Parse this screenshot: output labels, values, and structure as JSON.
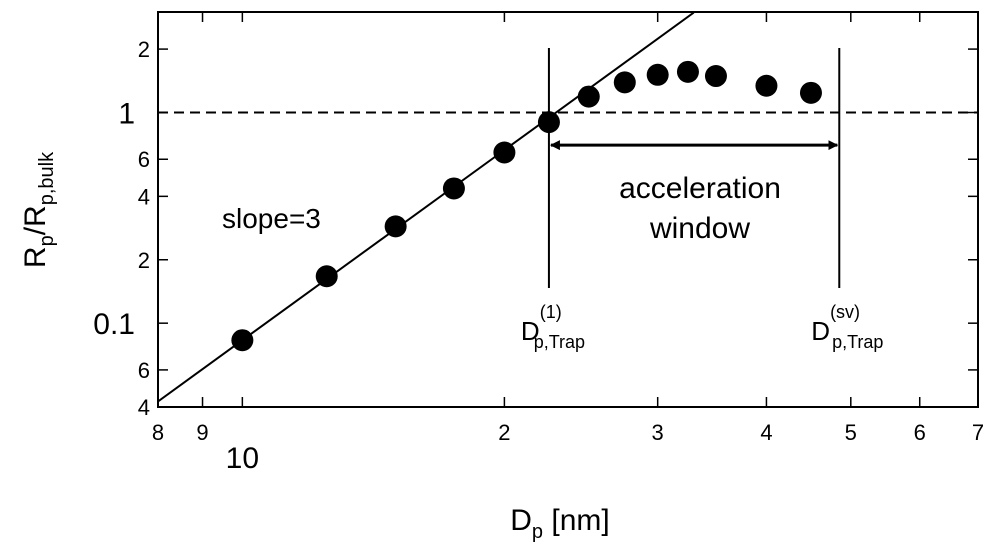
{
  "chart_data": {
    "type": "scatter",
    "xlog": true,
    "ylog": true,
    "xlim": [
      8,
      70
    ],
    "ylim": [
      0.04,
      3
    ],
    "xticks": [
      8,
      9,
      10,
      {
        "value": 20,
        "label": "2"
      },
      {
        "value": 30,
        "label": "3"
      },
      {
        "value": 40,
        "label": "4"
      },
      {
        "value": 50,
        "label": "5"
      },
      {
        "value": 60,
        "label": "6"
      },
      {
        "value": 70,
        "label": "7"
      }
    ],
    "yticks": [
      {
        "value": 0.04,
        "label": "4"
      },
      {
        "value": 0.06,
        "label": "6"
      },
      0.1,
      {
        "value": 0.2,
        "label": "2"
      },
      {
        "value": 0.4,
        "label": "4"
      },
      {
        "value": 0.6,
        "label": "6"
      },
      1,
      2
    ],
    "xlabel": {
      "main": "D",
      "sub": "p",
      "rest": " [nm]"
    },
    "ylabel": {
      "main": "R",
      "sub": "p",
      "mid": "/R",
      "sub2": "p,bulk"
    },
    "series": [
      {
        "color": "#000000",
        "x": [
          10,
          12.5,
          15,
          17.5,
          20,
          22.5,
          25,
          27.5,
          30,
          32.5,
          35,
          40,
          45
        ],
        "values": [
          0.083,
          0.167,
          0.288,
          0.436,
          0.646,
          0.9,
          1.19,
          1.39,
          1.51,
          1.56,
          1.49,
          1.34,
          1.24
        ]
      }
    ],
    "fit_line": {
      "x": [
        8,
        33
      ],
      "values": [
        0.0425,
        2.98
      ],
      "label": "slope=3"
    },
    "hline": {
      "y": 1,
      "style": "dashed"
    },
    "vlines": [
      {
        "x": 22.5,
        "label": {
          "main": "D",
          "sub": "p,Trap",
          "sup": "(1)"
        }
      },
      {
        "x": 48.5,
        "label": {
          "main": "D",
          "sub": "p,Trap",
          "sup": "(sv)"
        }
      }
    ],
    "arrow": {
      "x": [
        22.5,
        48.5
      ],
      "y": 0.7,
      "label": [
        "acceleration",
        "window"
      ]
    }
  }
}
